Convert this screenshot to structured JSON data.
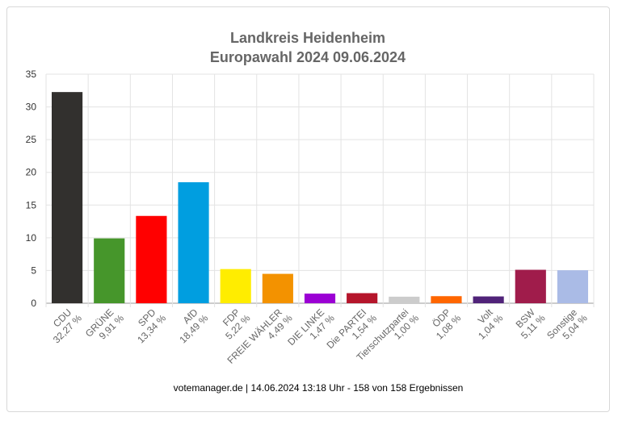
{
  "chart_data": {
    "type": "bar",
    "title": [
      "Landkreis Heidenheim",
      "Europawahl 2024 09.06.2024"
    ],
    "categories": [
      "CDU",
      "GRÜNE",
      "SPD",
      "AfD",
      "FDP",
      "FREIE WÄHLER",
      "DIE LINKE",
      "Die PARTEI",
      "Tierschutzpartei",
      "ÖDP",
      "Volt",
      "BSW",
      "Sonstige"
    ],
    "values": [
      32.27,
      9.91,
      13.34,
      18.49,
      5.22,
      4.49,
      1.47,
      1.54,
      1.0,
      1.08,
      1.04,
      5.11,
      5.04
    ],
    "value_labels": [
      "32,27 %",
      "9,91 %",
      "13,34 %",
      "18,49 %",
      "5,22 %",
      "4,49 %",
      "1,47 %",
      "1,54 %",
      "1,00 %",
      "1,08 %",
      "1,04 %",
      "5,11 %",
      "5,04 %"
    ],
    "colors": [
      "#32302e",
      "#46962b",
      "#ff0000",
      "#009ee0",
      "#ffed00",
      "#f39200",
      "#9b00d4",
      "#b5152b",
      "#cccccc",
      "#ff6600",
      "#502379",
      "#a01c4b",
      "#aabbe6"
    ],
    "ylim": [
      0,
      35
    ],
    "yticks": [
      "0",
      "5",
      "10",
      "15",
      "20",
      "25",
      "30",
      "35"
    ],
    "grid": true,
    "legend": "none"
  },
  "footer": "votemanager.de | 14.06.2024 13:18 Uhr - 158 von 158 Ergebnissen"
}
